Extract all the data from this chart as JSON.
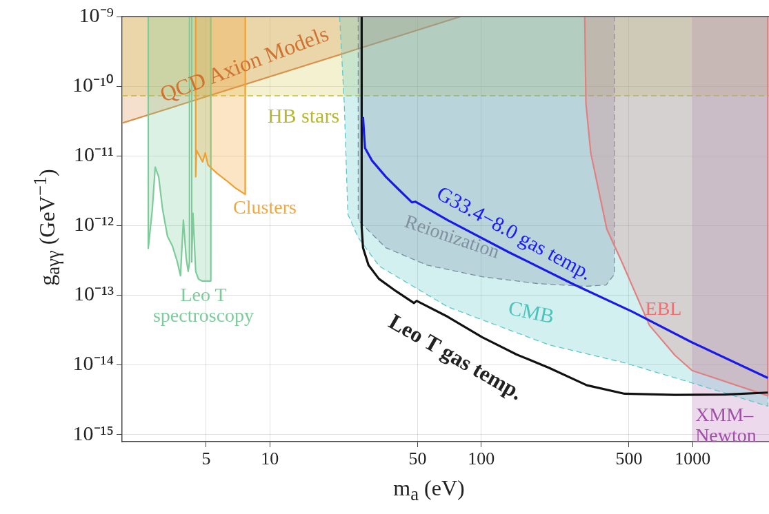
{
  "chart_data": {
    "type": "area",
    "xlabel": "m$_{a}$ (eV)",
    "ylabel": "g$_{aγγ}$ (GeV$^{−1}$)",
    "log": "xy",
    "grid": true,
    "legend": false,
    "xlim": [
      2,
      2300
    ],
    "xticks": [
      5,
      10,
      50,
      100,
      500,
      1000
    ],
    "ylim": [
      7.9e-16,
      1e-09
    ],
    "yticks": [
      {
        "value": 1e-09,
        "label": "10⁻⁹"
      },
      {
        "value": 1e-10,
        "label": "10⁻¹⁰"
      },
      {
        "value": 1e-11,
        "label": "10⁻¹¹"
      },
      {
        "value": 1e-12,
        "label": "10⁻¹²"
      },
      {
        "value": 1e-13,
        "label": "10⁻¹³"
      },
      {
        "value": 1e-14,
        "label": "10⁻¹⁴"
      },
      {
        "value": 1e-15,
        "label": "10⁻¹⁵"
      }
    ],
    "series": [
      {
        "color": "#d9904a",
        "x": [
          2,
          80
        ],
        "values": [
          2.95e-11,
          1e-09
        ]
      },
      {
        "color": "#7ccc9a",
        "x": [
          2.66,
          2.66,
          2.78,
          2.87,
          2.98,
          3.11,
          3.28,
          3.46,
          3.64,
          3.78,
          3.9,
          4.02,
          4.11,
          4.17,
          4.17,
          4.27,
          4.27,
          4.33,
          4.46,
          4.6,
          4.77,
          5.03,
          5.26,
          5.26
        ],
        "values": [
          1e-09,
          4.7e-13,
          1.7e-12,
          6.9e-12,
          5e-12,
          1.7e-12,
          7e-13,
          5.1e-13,
          3.1e-13,
          1.9e-13,
          1.2e-12,
          3.4e-13,
          2.2e-13,
          3e-13,
          1e-09,
          1e-09,
          3e-13,
          1.5e-12,
          2.2e-13,
          1.7e-13,
          1.6e-13,
          1.6e-13,
          1.6e-13,
          1e-09
        ]
      },
      {
        "color": "#f0a030",
        "x": [
          4.46,
          4.46,
          4.5,
          4.81,
          4.95,
          5.1,
          5.63,
          6.25,
          6.84,
          7.65,
          7.65
        ],
        "values": [
          1e-09,
          5e-12,
          1.2e-11,
          8.2e-12,
          1.1e-11,
          7.4e-12,
          5.6e-12,
          4.4e-12,
          3.5e-12,
          2.8e-12,
          1e-09
        ]
      },
      {
        "color": "#5cc8c8",
        "line_style": "dashed",
        "x": [
          21.4,
          22.5,
          23.4,
          26.2,
          33.0,
          69.5,
          209,
          477,
          995,
          2270,
          2270
        ],
        "values": [
          1e-09,
          5.7e-11,
          1.46e-12,
          6.7e-13,
          2.6e-13,
          6.8e-14,
          1.94e-14,
          1.07e-14,
          5.5e-15,
          2.55e-15,
          1e-09
        ]
      },
      {
        "color": "#7a8ca0",
        "line_style": "dashed",
        "x": [
          26.2,
          26.2,
          35.4,
          55.5,
          101,
          184,
          311,
          390,
          427,
          427
        ],
        "values": [
          1e-09,
          1.19e-12,
          4.8e-13,
          2.7e-13,
          1.84e-13,
          1.47e-13,
          1.34e-13,
          1.4e-13,
          2e-13,
          1e-09
        ]
      },
      {
        "color": "#e08080",
        "x": [
          309,
          313,
          330,
          393,
          463,
          625,
          826,
          995,
          2270,
          2270
        ],
        "values": [
          1e-09,
          5.7e-11,
          1.1e-11,
          8.9e-13,
          3e-13,
          3.7e-14,
          1.37e-14,
          8.3e-15,
          3.6e-15,
          1e-09
        ]
      },
      {
        "type": "line",
        "color": "#111111",
        "x": [
          27.2,
          27.2,
          27.6,
          29.3,
          32.8,
          39.6,
          48.1,
          49.5,
          69.5,
          101,
          147,
          209,
          316,
          477,
          826,
          1429,
          2270
        ],
        "values": [
          1e-09,
          9.5e-13,
          4.8e-13,
          2.7e-13,
          1.72e-13,
          1.14e-13,
          7.7e-14,
          8.3e-14,
          4.9e-14,
          2.5e-14,
          1.41e-14,
          9.1e-15,
          5.1e-15,
          3.85e-15,
          3.7e-15,
          3.75e-15,
          4e-15
        ]
      },
      {
        "type": "line",
        "color": "#1a1ae6",
        "x": [
          27.6,
          28.2,
          30.4,
          35.4,
          41.1,
          47.0,
          48.8,
          69.5,
          136,
          274,
          519,
          995,
          2270
        ],
        "values": [
          3.6e-11,
          1.3e-11,
          8.6e-12,
          5e-12,
          3.2e-12,
          2.15e-12,
          2.2e-12,
          1.19e-12,
          4.1e-13,
          1.43e-13,
          5.8e-14,
          2.1e-14,
          6.5e-15
        ]
      }
    ],
    "bands": [
      {
        "axis": "y",
        "from": 7.3e-11,
        "to": 1e-09,
        "color": "#d8d060"
      },
      {
        "axis": "x",
        "from": 1000,
        "to": 2300,
        "label": "XMM–Newton",
        "color": "#c080c0"
      }
    ],
    "ref_lines": [
      {
        "axis": "y",
        "value": 7.3e-11,
        "color": "#c8c030",
        "line_style": "dashed"
      }
    ],
    "annotations": [
      "QCD Axion Models",
      "HB stars",
      "Leo T spectroscopy",
      "Clusters",
      "CMB",
      "Reionization",
      "EBL",
      "Leo T gas temp.",
      "G33.4−8.0 gas temp."
    ]
  }
}
